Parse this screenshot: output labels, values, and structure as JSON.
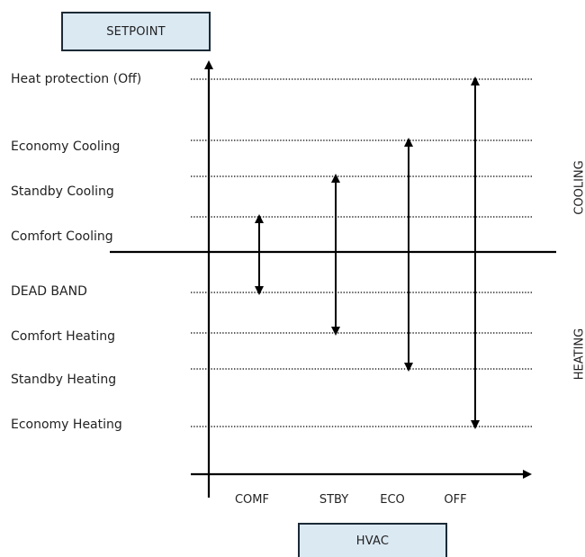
{
  "boxes": {
    "setpoint": "SETPOINT",
    "hvac": "HVAC"
  },
  "rows": [
    "Heat protection (Off)",
    "Economy Cooling",
    "Standby Cooling",
    "Comfort Cooling",
    "DEAD BAND",
    "Comfort Heating",
    "Standby  Heating",
    "Economy Heating"
  ],
  "side_labels": {
    "cooling": "COOLING",
    "heating": "HEATING"
  },
  "modes": [
    "COMF",
    "STBY",
    "ECO",
    "OFF"
  ]
}
